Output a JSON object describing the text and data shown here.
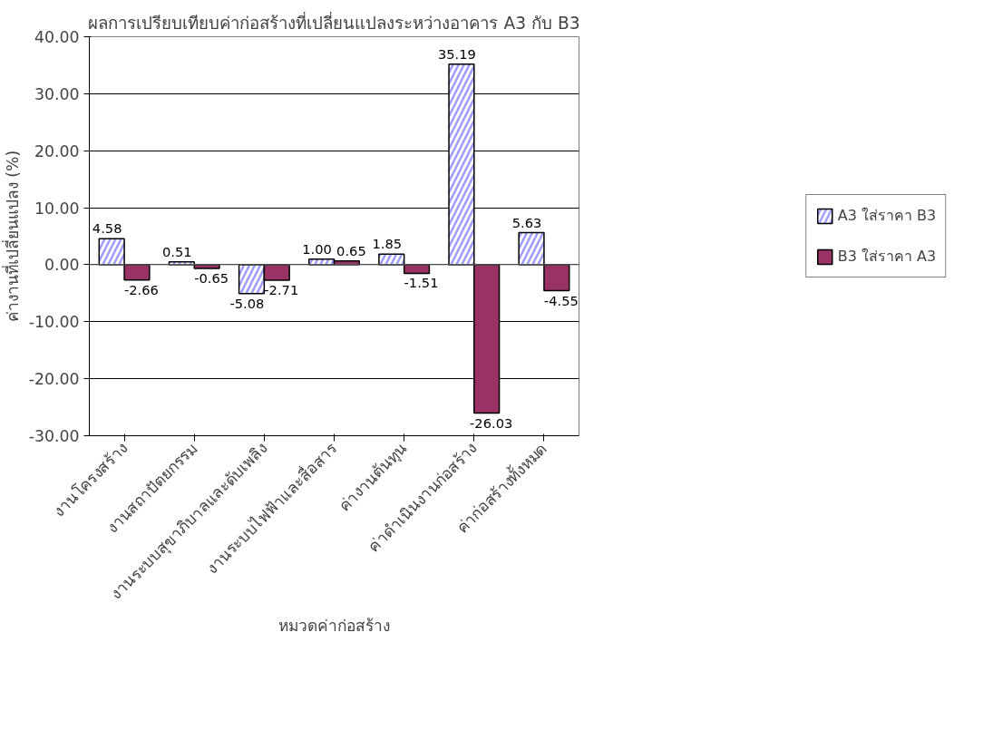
{
  "chart_data": {
    "type": "bar",
    "title": "ผลการเปรียบเทียบค่าก่อสร้างที่เปลี่ยนแปลงระหว่างอาคาร A3 กับ B3",
    "xlabel": "หมวดค่าก่อสร้าง",
    "ylabel": "ค่างานที่เปลี่ยนแปลง (%)",
    "categories": [
      "งานโครงสร้าง",
      "งานสถาปัตยกรรม",
      "งานระบบสุขาภิบาลและดับเพลิง",
      "งานระบบไฟฟ้าและสื่อสาร",
      "ค่างานต้นทุน",
      "ค่าดำเนินงานก่อสร้าง",
      "ค่าก่อสร้างทั้งหมด"
    ],
    "series": [
      {
        "name": "A3 ใส่ราคา B3",
        "color": "#9999ff",
        "values": [
          4.58,
          0.51,
          -5.08,
          1.0,
          1.85,
          35.19,
          5.63
        ],
        "value_labels": [
          "4.58",
          "0.51",
          "-5.08",
          "1.00",
          "1.85",
          "35.19",
          "5.63"
        ]
      },
      {
        "name": "B3 ใส่ราคา A3",
        "color": "#993366",
        "values": [
          -2.66,
          -0.65,
          -2.71,
          0.65,
          -1.51,
          -26.03,
          -4.55
        ],
        "value_labels": [
          "-2.66",
          "-0.65",
          "-2.71",
          "0.65",
          "-1.51",
          "-26.03",
          "-4.55"
        ]
      }
    ],
    "ylim": [
      -30,
      40
    ],
    "yticks": [
      {
        "value": -30,
        "label": "-30.00"
      },
      {
        "value": -20,
        "label": "-20.00"
      },
      {
        "value": -10,
        "label": "-10.00"
      },
      {
        "value": 0,
        "label": "0.00"
      },
      {
        "value": 10,
        "label": "10.00"
      },
      {
        "value": 20,
        "label": "20.00"
      },
      {
        "value": 30,
        "label": "30.00"
      },
      {
        "value": 40,
        "label": "40.00"
      }
    ],
    "grid": "y",
    "legend": "right"
  }
}
